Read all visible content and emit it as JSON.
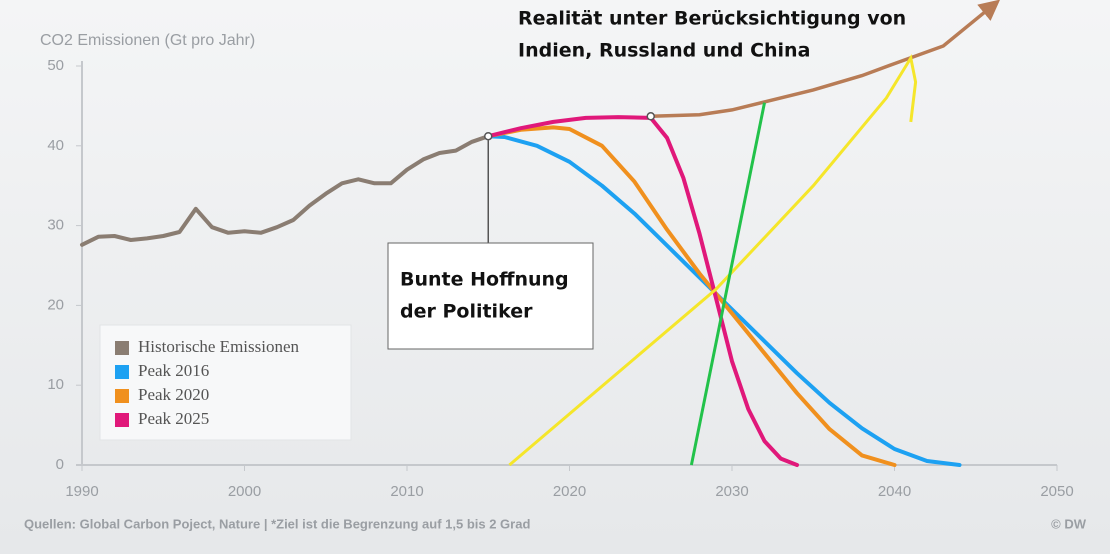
{
  "chart_data": {
    "type": "line",
    "y_axis_label": "CO2 Emissionen (Gt pro Jahr)",
    "xlim": [
      1990,
      2050
    ],
    "xticks": [
      1990,
      2000,
      2010,
      2020,
      2030,
      2040,
      2050
    ],
    "ylim": [
      0,
      50
    ],
    "yticks": [
      0,
      10,
      20,
      30,
      40,
      50
    ],
    "series": [
      {
        "name": "Historische Emissionen",
        "color": "#8a7d72",
        "x": [
          1990,
          1991,
          1992,
          1993,
          1994,
          1995,
          1996,
          1997,
          1998,
          1999,
          2000,
          2001,
          2002,
          2003,
          2004,
          2005,
          2006,
          2007,
          2008,
          2009,
          2010,
          2011,
          2012,
          2013,
          2014,
          2015
        ],
        "values": [
          27.6,
          28.6,
          28.7,
          28.2,
          28.4,
          28.7,
          29.2,
          32.1,
          29.8,
          29.1,
          29.3,
          29.1,
          29.8,
          30.7,
          32.5,
          34.0,
          35.3,
          35.8,
          35.3,
          35.3,
          37.0,
          38.3,
          39.1,
          39.4,
          40.5,
          41.2
        ]
      },
      {
        "name": "Peak 2016",
        "color": "#1da1f2",
        "x": [
          2015,
          2016,
          2018,
          2020,
          2022,
          2024,
          2026,
          2028,
          2030,
          2032,
          2034,
          2036,
          2038,
          2040,
          2042,
          2044
        ],
        "values": [
          41.2,
          41.1,
          40.0,
          38.0,
          35.0,
          31.5,
          27.5,
          23.5,
          19.5,
          15.5,
          11.5,
          7.8,
          4.6,
          2.0,
          0.5,
          0
        ]
      },
      {
        "name": "Peak 2020",
        "color": "#f0901e",
        "x": [
          2015,
          2017,
          2019,
          2020,
          2022,
          2024,
          2026,
          2028,
          2030,
          2032,
          2034,
          2036,
          2038,
          2040
        ],
        "values": [
          41.2,
          42.0,
          42.3,
          42.1,
          40.0,
          35.5,
          29.5,
          24.0,
          19.0,
          14.0,
          9.0,
          4.5,
          1.2,
          0
        ]
      },
      {
        "name": "Peak 2025",
        "color": "#e0187a",
        "x": [
          2015,
          2017,
          2019,
          2021,
          2023,
          2025,
          2026,
          2027,
          2028,
          2029,
          2030,
          2031,
          2032,
          2033,
          2034
        ],
        "values": [
          41.2,
          42.2,
          43.0,
          43.5,
          43.6,
          43.5,
          41.0,
          36.0,
          29.0,
          21.0,
          13.0,
          7.0,
          3.0,
          0.8,
          0
        ]
      }
    ],
    "extra_lines": [
      {
        "color": "#b87c56",
        "arrow": true,
        "x": [
          2025,
          2028,
          2030,
          2032,
          2035,
          2038,
          2040,
          2043,
          2046
        ],
        "values": [
          43.7,
          43.9,
          44.5,
          45.5,
          47.0,
          48.8,
          50.3,
          52.5,
          57.5
        ]
      },
      {
        "color": "#f5e62a",
        "arrow": false,
        "x": [
          2016.3,
          2029,
          2035,
          2039.5,
          2041,
          2041.3,
          2041.0
        ],
        "values": [
          0,
          22,
          35,
          46,
          51,
          48,
          43
        ]
      },
      {
        "color": "#22c24a",
        "arrow": false,
        "x": [
          2027.5,
          2032.0
        ],
        "values": [
          0,
          45.4
        ]
      }
    ],
    "markers": [
      {
        "x": 2015,
        "value": 41.2
      },
      {
        "x": 2025,
        "value": 43.7
      }
    ],
    "annotation_top": [
      "Realität unter Berücksichtigung von",
      "Indien, Russland und China"
    ],
    "annotation_box": [
      "Bunte Hoffnung",
      "der Politiker"
    ],
    "source": "Quellen:  Global Carbon Poject, Nature | *Ziel ist die Begrenzung auf 1,5 bis 2 Grad",
    "credit": "© DW"
  }
}
